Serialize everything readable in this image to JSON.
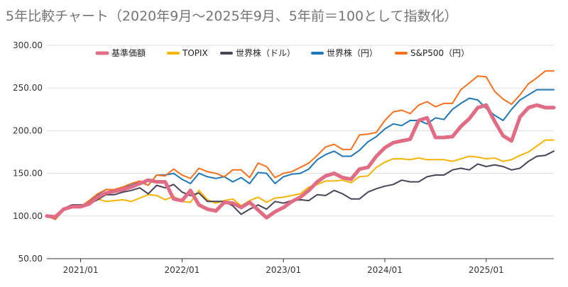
{
  "chart_data": {
    "type": "line",
    "title": "5年比較チャート（2020年9月〜2025年9月、5年前＝100として指数化）",
    "xlabel": "",
    "ylabel": "",
    "ylim": [
      50,
      300
    ],
    "y_ticks": [
      "50.00",
      "100.00",
      "150.00",
      "200.00",
      "250.00",
      "300.00"
    ],
    "x_ticks": [
      {
        "label": "2021/01",
        "month": "2021-01"
      },
      {
        "label": "2022/01",
        "month": "2022-01"
      },
      {
        "label": "2023/01",
        "month": "2023-01"
      },
      {
        "label": "2024/01",
        "month": "2024-01"
      },
      {
        "label": "2025/01",
        "month": "2025-01"
      }
    ],
    "grid": true,
    "legend_position": "top",
    "x": [
      "2020-09",
      "2020-10",
      "2020-11",
      "2020-12",
      "2021-01",
      "2021-02",
      "2021-03",
      "2021-04",
      "2021-05",
      "2021-06",
      "2021-07",
      "2021-08",
      "2021-09",
      "2021-10",
      "2021-11",
      "2021-12",
      "2022-01",
      "2022-02",
      "2022-03",
      "2022-04",
      "2022-05",
      "2022-06",
      "2022-07",
      "2022-08",
      "2022-09",
      "2022-10",
      "2022-11",
      "2022-12",
      "2023-01",
      "2023-02",
      "2023-03",
      "2023-04",
      "2023-05",
      "2023-06",
      "2023-07",
      "2023-08",
      "2023-09",
      "2023-10",
      "2023-11",
      "2023-12",
      "2024-01",
      "2024-02",
      "2024-03",
      "2024-04",
      "2024-05",
      "2024-06",
      "2024-07",
      "2024-08",
      "2024-09",
      "2024-10",
      "2024-11",
      "2024-12",
      "2025-01",
      "2025-02",
      "2025-03",
      "2025-04",
      "2025-05",
      "2025-06",
      "2025-07",
      "2025-08",
      "2025-09"
    ],
    "series": [
      {
        "name": "基準価額",
        "color": "#e06c86",
        "width": 5,
        "values": [
          100,
          99,
          108,
          111,
          111,
          114,
          122,
          127,
          129,
          131,
          134,
          138,
          142,
          140,
          140,
          120,
          118,
          130,
          113,
          108,
          106,
          116,
          115,
          110,
          116,
          107,
          98,
          105,
          110,
          117,
          122,
          130,
          140,
          147,
          150,
          145,
          143,
          155,
          157,
          170,
          180,
          186,
          188,
          190,
          212,
          215,
          192,
          192,
          193,
          205,
          214,
          227,
          230,
          211,
          194,
          188,
          216,
          227,
          230,
          227,
          227
        ]
      },
      {
        "name": "TOPIX",
        "color": "#f4b400",
        "width": 2,
        "values": [
          100,
          97,
          107,
          110,
          111,
          113,
          120,
          117,
          118,
          119,
          117,
          121,
          125,
          124,
          119,
          123,
          117,
          116,
          130,
          119,
          115,
          118,
          120,
          112,
          118,
          122,
          116,
          121,
          122,
          124,
          126,
          134,
          137,
          141,
          141,
          142,
          139,
          146,
          147,
          157,
          163,
          167,
          167,
          166,
          168,
          166,
          166,
          166,
          164,
          167,
          170,
          169,
          167,
          168,
          164,
          166,
          171,
          175,
          182,
          189,
          189
        ]
      },
      {
        "name": "世界株（ドル）",
        "color": "#4a4458",
        "width": 2,
        "values": [
          100,
          98,
          109,
          113,
          113,
          114,
          119,
          125,
          125,
          128,
          130,
          133,
          126,
          136,
          133,
          137,
          128,
          124,
          127,
          117,
          117,
          117,
          112,
          102,
          108,
          113,
          108,
          117,
          115,
          118,
          119,
          118,
          125,
          124,
          130,
          126,
          120,
          120,
          128,
          132,
          135,
          137,
          142,
          140,
          140,
          146,
          148,
          148,
          154,
          156,
          154,
          161,
          158,
          160,
          158,
          154,
          156,
          164,
          170,
          171,
          176
        ]
      },
      {
        "name": "世界株（円）",
        "color": "#1f77b4",
        "width": 2,
        "values": [
          100,
          97,
          108,
          112,
          112,
          116,
          125,
          131,
          131,
          134,
          136,
          140,
          136,
          148,
          148,
          150,
          143,
          138,
          150,
          146,
          144,
          146,
          140,
          145,
          138,
          151,
          150,
          138,
          146,
          149,
          150,
          155,
          166,
          172,
          176,
          170,
          170,
          177,
          187,
          193,
          202,
          208,
          206,
          212,
          212,
          208,
          215,
          213,
          225,
          232,
          238,
          236,
          226,
          218,
          212,
          225,
          236,
          242,
          248,
          248,
          248
        ]
      },
      {
        "name": "S&P500（円）",
        "color": "#f5711e",
        "width": 2,
        "values": [
          100,
          96,
          107,
          110,
          111,
          118,
          126,
          131,
          131,
          134,
          138,
          141,
          136,
          148,
          147,
          155,
          148,
          144,
          156,
          152,
          150,
          146,
          154,
          154,
          145,
          162,
          158,
          145,
          150,
          152,
          157,
          162,
          171,
          181,
          184,
          178,
          178,
          195,
          196,
          198,
          212,
          222,
          224,
          220,
          230,
          234,
          228,
          232,
          232,
          248,
          256,
          264,
          263,
          246,
          237,
          231,
          242,
          255,
          262,
          270,
          270
        ]
      }
    ]
  }
}
